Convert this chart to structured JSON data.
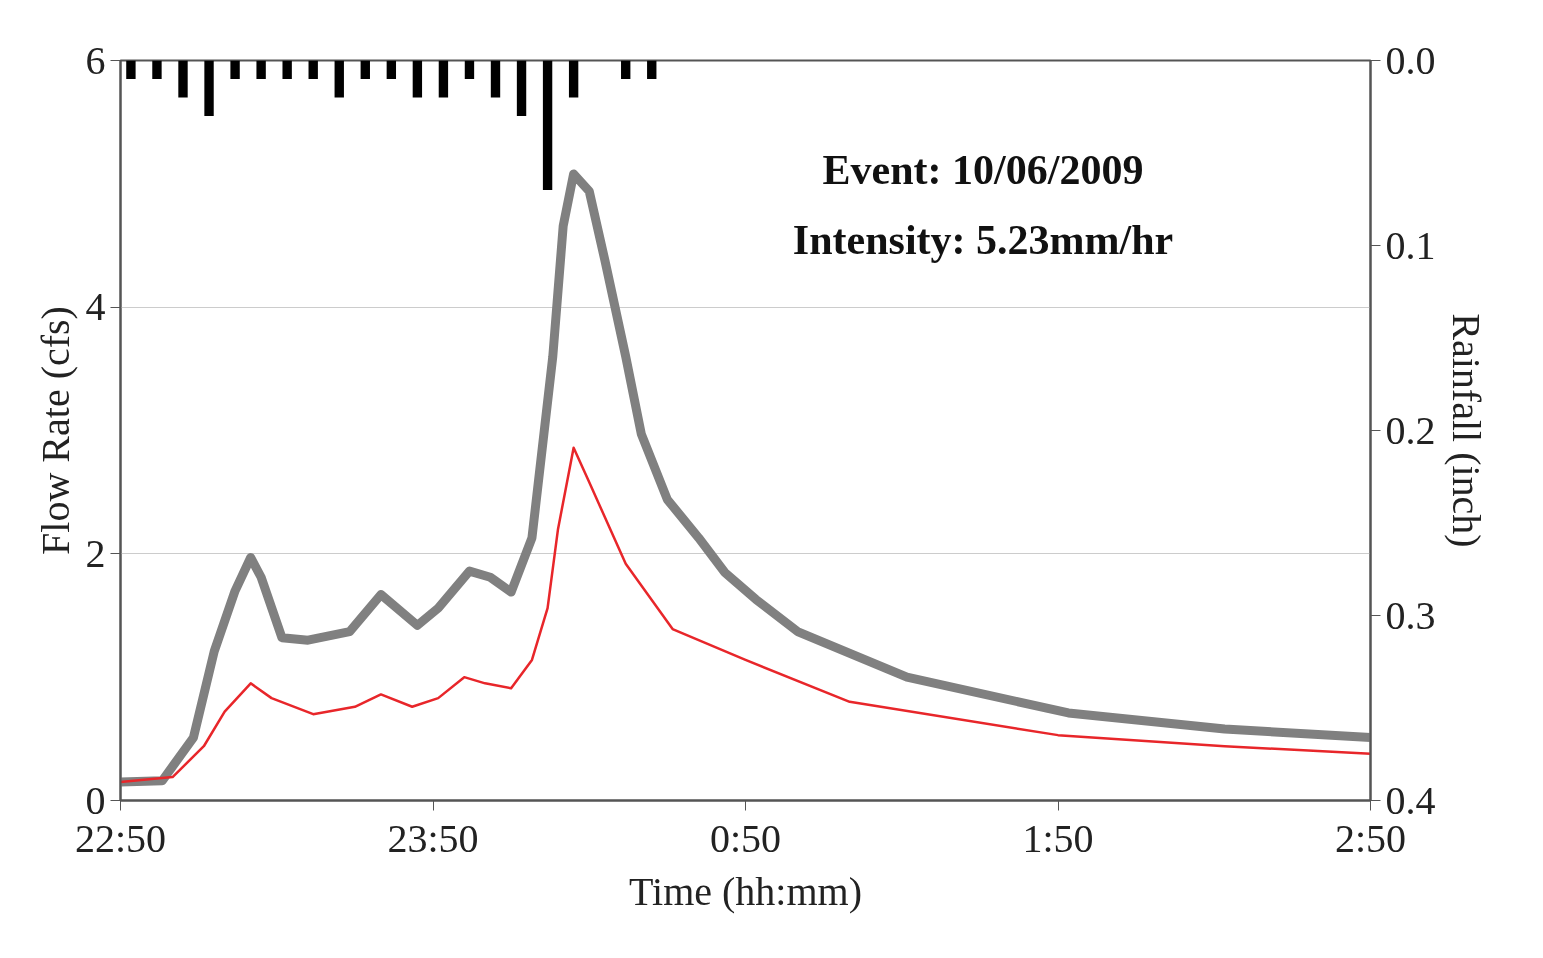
{
  "chart_data": {
    "type": "line",
    "xlabel": "Time (hh:mm)",
    "ylabel": "Flow Rate (cfs)",
    "y2label": "Rainfall (inch)",
    "annotations": [
      "Event: 10/06/2009",
      "Intensity: 5.23mm/hr"
    ],
    "xlim": [
      "2009-10-06T22:50",
      "2009-10-07T02:50"
    ],
    "xticks": [
      {
        "value": "2009-10-06T22:50",
        "label": "22:50"
      },
      {
        "value": "2009-10-06T23:50",
        "label": "23:50"
      },
      {
        "value": "2009-10-07T00:50",
        "label": "0:50"
      },
      {
        "value": "2009-10-07T01:50",
        "label": "1:50"
      },
      {
        "value": "2009-10-07T02:50",
        "label": "2:50"
      }
    ],
    "ylim": [
      0,
      6
    ],
    "yticks": [
      0,
      2,
      4,
      6
    ],
    "y2lim": [
      0.4,
      0.0
    ],
    "y2ticks": [
      {
        "value": 0.0,
        "label": "0.0"
      },
      {
        "value": 0.1,
        "label": "0.1"
      },
      {
        "value": 0.2,
        "label": "0.2"
      },
      {
        "value": 0.3,
        "label": "0.3"
      },
      {
        "value": 0.4,
        "label": "0.4"
      }
    ],
    "grid": "y",
    "marker": "none",
    "line_style": "solid",
    "series": [
      {
        "type": "bar",
        "axis": "y2",
        "color": "#000000",
        "x": [
          "2009-10-06T22:52",
          "2009-10-06T22:57",
          "2009-10-06T23:02",
          "2009-10-06T23:07",
          "2009-10-06T23:12",
          "2009-10-06T23:17",
          "2009-10-06T23:22",
          "2009-10-06T23:27",
          "2009-10-06T23:32",
          "2009-10-06T23:37",
          "2009-10-06T23:42",
          "2009-10-06T23:47",
          "2009-10-06T23:52",
          "2009-10-06T23:57",
          "2009-10-07T00:02",
          "2009-10-07T00:07",
          "2009-10-07T00:12",
          "2009-10-07T00:17",
          "2009-10-07T00:27",
          "2009-10-07T00:32"
        ],
        "values": [
          0.01,
          0.01,
          0.02,
          0.03,
          0.01,
          0.01,
          0.01,
          0.01,
          0.02,
          0.01,
          0.01,
          0.02,
          0.02,
          0.01,
          0.02,
          0.03,
          0.07,
          0.02,
          0.01,
          0.01
        ]
      },
      {
        "color": "#808080",
        "x": [
          "2009-10-06T22:50",
          "2009-10-06T22:58",
          "2009-10-06T23:04",
          "2009-10-06T23:08",
          "2009-10-06T23:12",
          "2009-10-06T23:15",
          "2009-10-06T23:17",
          "2009-10-06T23:21",
          "2009-10-06T23:26",
          "2009-10-06T23:34",
          "2009-10-06T23:40",
          "2009-10-06T23:47",
          "2009-10-06T23:51",
          "2009-10-06T23:57",
          "2009-10-07T00:01",
          "2009-10-07T00:05",
          "2009-10-07T00:09",
          "2009-10-07T00:13",
          "2009-10-07T00:15",
          "2009-10-07T00:17",
          "2009-10-07T00:20",
          "2009-10-07T00:23",
          "2009-10-07T00:27",
          "2009-10-07T00:30",
          "2009-10-07T00:35",
          "2009-10-07T00:41",
          "2009-10-07T00:46",
          "2009-10-07T00:52",
          "2009-10-07T01:00",
          "2009-10-07T01:21",
          "2009-10-07T01:52",
          "2009-10-07T02:22",
          "2009-10-07T02:50"
        ],
        "values": [
          0.15,
          0.16,
          0.51,
          1.21,
          1.7,
          1.97,
          1.81,
          1.32,
          1.3,
          1.37,
          1.67,
          1.42,
          1.56,
          1.86,
          1.81,
          1.69,
          2.13,
          3.6,
          4.66,
          5.08,
          4.94,
          4.38,
          3.6,
          2.97,
          2.44,
          2.13,
          1.85,
          1.63,
          1.37,
          1.0,
          0.71,
          0.58,
          0.51
        ]
      },
      {
        "color": "#e8262a",
        "x": [
          "2009-10-06T22:50",
          "2009-10-06T23:00",
          "2009-10-06T23:06",
          "2009-10-06T23:10",
          "2009-10-06T23:15",
          "2009-10-06T23:19",
          "2009-10-06T23:27",
          "2009-10-06T23:35",
          "2009-10-06T23:40",
          "2009-10-06T23:46",
          "2009-10-06T23:51",
          "2009-10-06T23:56",
          "2009-10-07T00:00",
          "2009-10-07T00:05",
          "2009-10-07T00:09",
          "2009-10-07T00:12",
          "2009-10-07T00:14",
          "2009-10-07T00:17",
          "2009-10-07T00:20",
          "2009-10-07T00:27",
          "2009-10-07T00:36",
          "2009-10-07T00:50",
          "2009-10-07T01:10",
          "2009-10-07T01:50",
          "2009-10-07T02:22",
          "2009-10-07T02:50"
        ],
        "values": [
          0.15,
          0.19,
          0.44,
          0.72,
          0.95,
          0.83,
          0.7,
          0.76,
          0.86,
          0.76,
          0.83,
          1.0,
          0.95,
          0.91,
          1.14,
          1.56,
          2.2,
          2.86,
          2.58,
          1.92,
          1.39,
          1.14,
          0.8,
          0.53,
          0.44,
          0.38
        ]
      }
    ]
  }
}
